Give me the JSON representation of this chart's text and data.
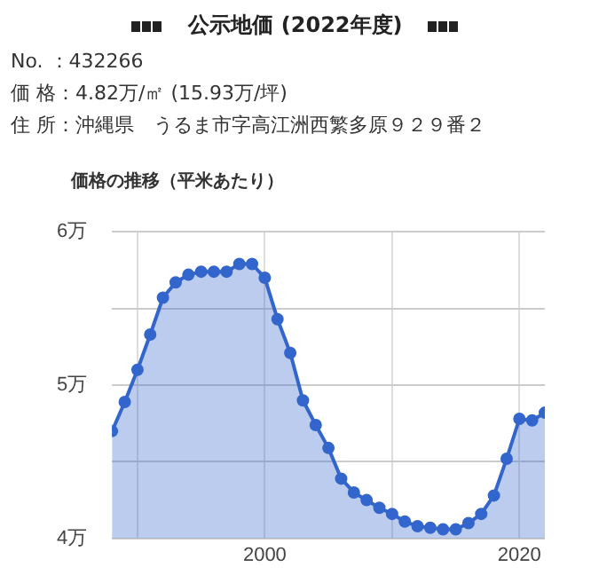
{
  "chart_data": {
    "type": "area",
    "title": "公示地価 (2022年度)",
    "subtitle": "価格の推移（平米あたり）",
    "annotations": [
      "No. ：432266",
      "価 格：4.82万/㎡ (15.93万/坪)",
      "住 所：沖縄県　うるま市字高江洲西繁多原９２９番２"
    ],
    "x": [
      1988,
      1989,
      1990,
      1991,
      1992,
      1993,
      1994,
      1995,
      1996,
      1997,
      1998,
      1999,
      2000,
      2001,
      2002,
      2003,
      2004,
      2005,
      2006,
      2007,
      2008,
      2009,
      2010,
      2011,
      2012,
      2013,
      2014,
      2015,
      2016,
      2017,
      2018,
      2019,
      2020,
      2021,
      2022
    ],
    "series": [
      {
        "color": "#3366cc",
        "values": [
          4.7,
          4.89,
          5.1,
          5.33,
          5.57,
          5.67,
          5.72,
          5.74,
          5.74,
          5.74,
          5.79,
          5.79,
          5.7,
          5.43,
          5.21,
          4.9,
          4.74,
          4.59,
          4.39,
          4.3,
          4.25,
          4.2,
          4.16,
          4.11,
          4.08,
          4.07,
          4.06,
          4.06,
          4.1,
          4.16,
          4.28,
          4.52,
          4.78,
          4.77,
          4.82
        ]
      }
    ],
    "xlim": [
      1988,
      2022
    ],
    "xticks": [
      {
        "value": 1990,
        "label": null
      },
      2000,
      {
        "value": 2010,
        "label": null
      },
      2020
    ],
    "ylim": [
      4,
      6
    ],
    "yticks": [
      {
        "value": 4,
        "label": "4万"
      },
      {
        "value": 4.5,
        "label": null
      },
      {
        "value": 5,
        "label": "5万"
      },
      {
        "value": 5.5,
        "label": null
      },
      {
        "value": 6,
        "label": "6万"
      }
    ],
    "grid": true,
    "marker": "circle",
    "legend": false
  }
}
